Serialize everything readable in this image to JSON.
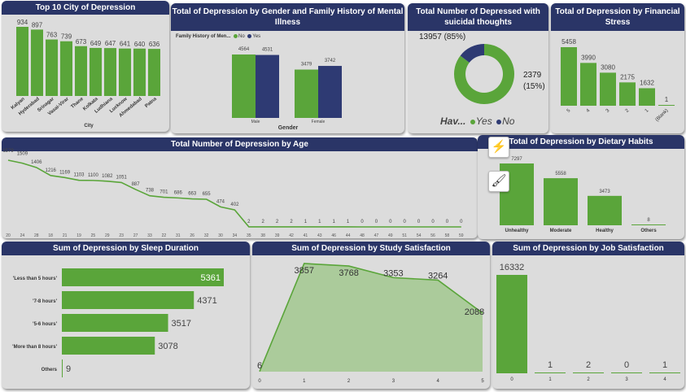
{
  "colors": {
    "green": "#5aa53a",
    "navy": "#2e3a73",
    "titlebar": "#2a3567",
    "panel": "#dcdcdc"
  },
  "panels": {
    "city": "Top 10 City of Depression",
    "gender": "Total of Depression by Gender and Family History of Mental Illness",
    "suicidal": "Total Number of Depressed with suicidal thoughts",
    "financial": "Total of Depression by Financial Stress",
    "age": "Total Number of Depression by Age",
    "dietary": "Total of Depression by Dietary Habits",
    "sleep": "Sum of Depression by Sleep Duration",
    "study": "Sum of Depression by Study Satisfaction",
    "job": "Sum of Depression by Job Satisfaction"
  },
  "icons": {
    "visual_icon": "bar-chart-lightning-icon",
    "format_icon": "paintbrush-plus-icon"
  },
  "chart_data": [
    {
      "id": "city",
      "type": "bar",
      "xlabel": "City",
      "categories": [
        "Kalyan",
        "Hyderabad",
        "Srinagar",
        "Vasai-Virar",
        "Thane",
        "Kolkata",
        "Ludhiana",
        "Lucknow",
        "Ahmedabad",
        "Patna"
      ],
      "values": [
        934,
        897,
        763,
        739,
        673,
        649,
        647,
        641,
        640,
        636
      ]
    },
    {
      "id": "gender",
      "type": "bar",
      "xlabel": "Gender",
      "legend_title": "Family History of Men...",
      "categories": [
        "Male",
        "Female"
      ],
      "series": [
        {
          "name": "No",
          "values": [
            4564,
            3479
          ]
        },
        {
          "name": "Yes",
          "values": [
            4531,
            3742
          ]
        }
      ]
    },
    {
      "id": "suicidal",
      "type": "pie",
      "legend_title": "Hav...",
      "slices": [
        {
          "name": "Yes",
          "value": 13957,
          "label": "13957 (85%)"
        },
        {
          "name": "No",
          "value": 2379,
          "label1": "2379",
          "label2": "(15%)"
        }
      ]
    },
    {
      "id": "financial",
      "type": "bar",
      "categories": [
        "5",
        "4",
        "3",
        "2",
        "1",
        "(Blank)"
      ],
      "values": [
        5458,
        3990,
        3080,
        2175,
        1632,
        1
      ]
    },
    {
      "id": "age",
      "type": "line",
      "categories": [
        "20",
        "24",
        "28",
        "18",
        "21",
        "19",
        "25",
        "29",
        "23",
        "27",
        "33",
        "22",
        "31",
        "26",
        "32",
        "30",
        "34",
        "35",
        "38",
        "39",
        "42",
        "41",
        "43",
        "46",
        "44",
        "48",
        "47",
        "49",
        "51",
        "54",
        "56",
        "58",
        "59"
      ],
      "values": [
        1579,
        1509,
        1406,
        1216,
        1169,
        1103,
        1100,
        1082,
        1051,
        887,
        738,
        701,
        686,
        663,
        655,
        474,
        402,
        2,
        2,
        2,
        2,
        1,
        1,
        1,
        1,
        0,
        0,
        0,
        0,
        0,
        0,
        0,
        0
      ]
    },
    {
      "id": "dietary",
      "type": "bar",
      "categories": [
        "Unhealthy",
        "Moderate",
        "Healthy",
        "Others"
      ],
      "values": [
        7297,
        5558,
        3473,
        8
      ]
    },
    {
      "id": "sleep",
      "type": "bar",
      "orientation": "horizontal",
      "categories": [
        "'Less than 5 hours'",
        "'7-8 hours'",
        "'5-6 hours'",
        "'More than 8 hours'",
        "Others"
      ],
      "values": [
        5361,
        4371,
        3517,
        3078,
        9
      ]
    },
    {
      "id": "study",
      "type": "area",
      "categories": [
        "0",
        "1",
        "2",
        "3",
        "4",
        "5"
      ],
      "values": [
        6,
        3857,
        3768,
        3353,
        3264,
        2088
      ]
    },
    {
      "id": "job",
      "type": "bar",
      "categories": [
        "0",
        "1",
        "2",
        "3",
        "4"
      ],
      "values": [
        16332,
        1,
        2,
        0,
        1
      ]
    }
  ]
}
